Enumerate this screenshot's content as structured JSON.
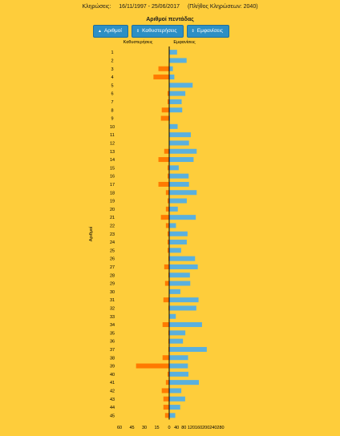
{
  "header": {
    "draws_label": "Κληρώσεις:",
    "date_range": "16/11/1997 - 25/06/2017",
    "draws_count": "(Πλήθος Κληρώσεων: 2040)"
  },
  "toolbar": {
    "buttons": [
      {
        "label": "Αριθμοί",
        "icon": "arrow-up-icon"
      },
      {
        "label": "Καθυστερήσεις",
        "icon": "sort-icon"
      },
      {
        "label": "Εμφανίσεις",
        "icon": "sort-icon"
      }
    ]
  },
  "colors": {
    "delays": "#ff7a00",
    "appearances": "#5ab0de",
    "axis": "#000000"
  },
  "chart_data": {
    "type": "bar",
    "orientation": "horizontal",
    "title": "Αριθμοί πεντάδας",
    "ylabel": "Αριθμοί",
    "categories": [
      "1",
      "2",
      "3",
      "4",
      "5",
      "6",
      "7",
      "8",
      "9",
      "10",
      "11",
      "12",
      "13",
      "14",
      "15",
      "16",
      "17",
      "18",
      "19",
      "20",
      "21",
      "22",
      "23",
      "24",
      "25",
      "26",
      "27",
      "28",
      "29",
      "30",
      "31",
      "32",
      "33",
      "34",
      "35",
      "36",
      "37",
      "38",
      "39",
      "40",
      "41",
      "42",
      "43",
      "44",
      "45"
    ],
    "series": [
      {
        "name": "Καθυστερήσεις",
        "side": "left",
        "axis_ticks": [
          "60",
          "45",
          "30",
          "15",
          "0"
        ],
        "xlim": [
          0,
          60
        ],
        "values": [
          0,
          0,
          13,
          19,
          0,
          2,
          2,
          9,
          10,
          0,
          0,
          0,
          6,
          13,
          2,
          2,
          13,
          4,
          2,
          4,
          10,
          4,
          2,
          2,
          2,
          1,
          6,
          1,
          5,
          0,
          7,
          1,
          0,
          8,
          1,
          1,
          1,
          8,
          40,
          2,
          4,
          9,
          7,
          7,
          5
        ]
      },
      {
        "name": "Εμφανίσεις",
        "side": "right",
        "axis_ticks": [
          "0",
          "40",
          "80",
          "120",
          "160",
          "200",
          "240",
          "280"
        ],
        "xlim": [
          0,
          280
        ],
        "values": [
          43,
          95,
          20,
          28,
          128,
          88,
          68,
          71,
          4,
          46,
          118,
          108,
          150,
          133,
          52,
          106,
          108,
          150,
          96,
          47,
          145,
          37,
          100,
          96,
          65,
          141,
          156,
          113,
          115,
          61,
          160,
          148,
          36,
          179,
          88,
          75,
          205,
          103,
          102,
          105,
          162,
          66,
          87,
          60,
          33
        ]
      }
    ]
  }
}
